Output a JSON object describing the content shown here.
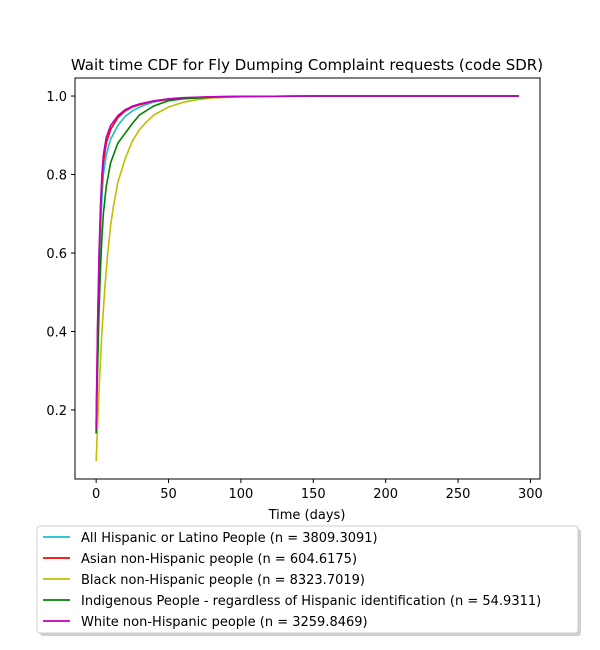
{
  "chart_data": {
    "type": "line",
    "title": "Wait time CDF for Fly Dumping Complaint  requests (code SDR)",
    "xlabel": "Time (days)",
    "ylabel": "",
    "xlim": [
      -14.6,
      306.6
    ],
    "ylim": [
      0.024,
      1.046
    ],
    "xticks": [
      0,
      50,
      100,
      150,
      200,
      250,
      300
    ],
    "yticks": [
      0.2,
      0.4,
      0.6,
      0.8,
      1.0
    ],
    "yticklabels": [
      "0.2",
      "0.4",
      "0.6",
      "0.8",
      "1.0"
    ],
    "grid": false,
    "legend_position": "below",
    "series": [
      {
        "name": "All Hispanic or Latino People (n = 3809.3091)",
        "color": "#17becf",
        "x": [
          0,
          1,
          2,
          3,
          4,
          5,
          7,
          10,
          15,
          20,
          25,
          30,
          40,
          50,
          60,
          80,
          100,
          150,
          200,
          250,
          292
        ],
        "y": [
          0.14,
          0.36,
          0.53,
          0.65,
          0.74,
          0.8,
          0.85,
          0.89,
          0.925,
          0.948,
          0.962,
          0.972,
          0.985,
          0.991,
          0.995,
          0.998,
          0.999,
          1.0,
          1.0,
          1.0,
          1.0
        ]
      },
      {
        "name": "Asian non-Hispanic people (n = 604.6175)",
        "color": "#ff0000",
        "x": [
          0,
          1,
          2,
          3,
          4,
          5,
          7,
          10,
          15,
          20,
          25,
          30,
          40,
          50,
          60,
          80,
          100,
          150,
          200,
          250,
          292
        ],
        "y": [
          0.16,
          0.4,
          0.58,
          0.7,
          0.78,
          0.83,
          0.88,
          0.915,
          0.945,
          0.962,
          0.972,
          0.978,
          0.987,
          0.992,
          0.995,
          0.998,
          0.999,
          1.0,
          1.0,
          1.0,
          1.0
        ]
      },
      {
        "name": "Black non-Hispanic people (n = 8323.7019)",
        "color": "#bfbf00",
        "x": [
          0,
          2,
          4,
          6,
          8,
          10,
          12,
          15,
          20,
          25,
          30,
          35,
          40,
          50,
          60,
          70,
          80,
          100,
          150,
          200,
          250,
          292
        ],
        "y": [
          0.07,
          0.25,
          0.4,
          0.51,
          0.6,
          0.67,
          0.72,
          0.78,
          0.84,
          0.885,
          0.915,
          0.935,
          0.952,
          0.972,
          0.984,
          0.991,
          0.995,
          0.998,
          1.0,
          1.0,
          1.0,
          1.0
        ]
      },
      {
        "name": "Indigenous People - regardless of Hispanic identification (n = 54.9311)",
        "color": "#008000",
        "x": [
          0,
          1,
          2,
          3,
          4,
          5,
          7,
          10,
          15,
          20,
          25,
          30,
          40,
          50,
          60,
          80,
          100,
          150,
          200,
          250,
          292
        ],
        "y": [
          0.14,
          0.3,
          0.45,
          0.56,
          0.64,
          0.7,
          0.77,
          0.83,
          0.88,
          0.905,
          0.93,
          0.952,
          0.975,
          0.988,
          0.993,
          0.997,
          0.999,
          1.0,
          1.0,
          1.0,
          1.0
        ]
      },
      {
        "name": "White non-Hispanic people (n = 3259.8469)",
        "color": "#bf00bf",
        "x": [
          0,
          1,
          2,
          3,
          4,
          5,
          7,
          10,
          15,
          20,
          25,
          30,
          40,
          50,
          60,
          80,
          100,
          150,
          200,
          250,
          292
        ],
        "y": [
          0.15,
          0.42,
          0.6,
          0.72,
          0.8,
          0.85,
          0.895,
          0.925,
          0.95,
          0.965,
          0.974,
          0.98,
          0.988,
          0.993,
          0.996,
          0.998,
          0.999,
          1.0,
          1.0,
          1.0,
          1.0
        ]
      }
    ]
  }
}
